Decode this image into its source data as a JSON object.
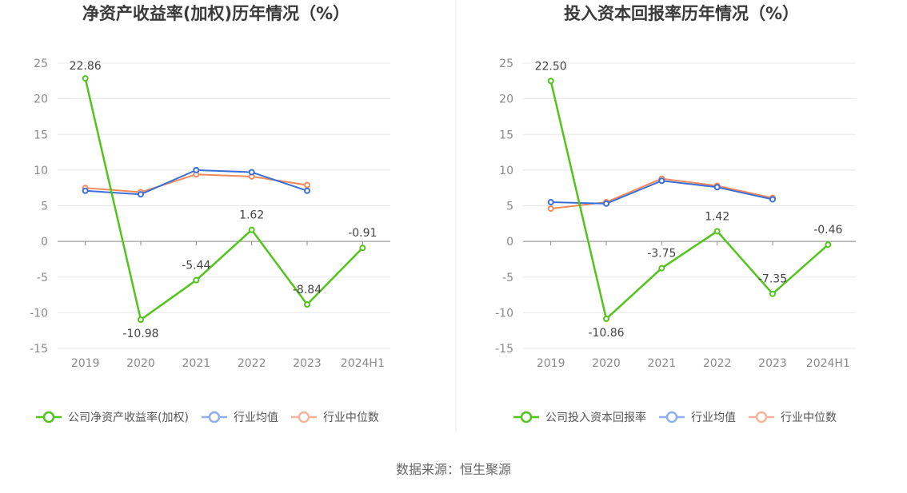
{
  "source_label": "数据来源：恒生聚源",
  "colors": {
    "company": "#52c41a",
    "industry_avg": "#3a6fd8",
    "industry_median": "#f08a5d",
    "legend_avg": "#8fb0ee",
    "legend_median": "#f5b49a",
    "grid": "#e6e8ee",
    "axis": "#888888"
  },
  "chart_data": [
    {
      "type": "line",
      "title": "净资产收益率(加权)历年情况（%）",
      "categories": [
        "2019",
        "2020",
        "2021",
        "2022",
        "2023",
        "2024H1"
      ],
      "ylim": [
        -15,
        25
      ],
      "yticks": [
        25,
        20,
        15,
        10,
        5,
        0,
        -5,
        -10,
        -15
      ],
      "grid": true,
      "legend_position": "bottom",
      "series": [
        {
          "name": "公司净资产收益率(加权)",
          "key": "company",
          "values": [
            22.86,
            -10.98,
            -5.44,
            1.62,
            -8.84,
            -0.91
          ],
          "labels": [
            "22.86",
            "-10.98",
            "-5.44",
            "1.62",
            "-8.84",
            "-0.91"
          ]
        },
        {
          "name": "行业均值",
          "key": "industry_avg",
          "values": [
            7.1,
            6.6,
            10.0,
            9.7,
            7.1,
            null
          ]
        },
        {
          "name": "行业中位数",
          "key": "industry_median",
          "values": [
            7.5,
            6.9,
            9.4,
            9.1,
            7.9,
            null
          ]
        }
      ]
    },
    {
      "type": "line",
      "title": "投入资本回报率历年情况（%）",
      "categories": [
        "2019",
        "2020",
        "2021",
        "2022",
        "2023",
        "2024H1"
      ],
      "ylim": [
        -15,
        25
      ],
      "yticks": [
        25,
        20,
        15,
        10,
        5,
        0,
        -5,
        -10,
        -15
      ],
      "grid": true,
      "legend_position": "bottom",
      "series": [
        {
          "name": "公司投入资本回报率",
          "key": "company",
          "values": [
            22.5,
            -10.86,
            -3.75,
            1.42,
            -7.35,
            -0.46
          ],
          "labels": [
            "22.50",
            "-10.86",
            "-3.75",
            "1.42",
            "-7.35",
            "-0.46"
          ]
        },
        {
          "name": "行业均值",
          "key": "industry_avg",
          "values": [
            5.5,
            5.3,
            8.5,
            7.6,
            5.9,
            null
          ]
        },
        {
          "name": "行业中位数",
          "key": "industry_median",
          "values": [
            4.6,
            5.5,
            8.8,
            7.8,
            6.1,
            null
          ]
        }
      ]
    }
  ]
}
